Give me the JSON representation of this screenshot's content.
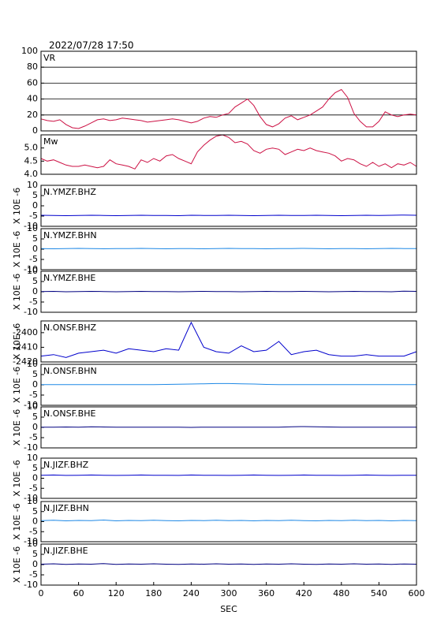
{
  "chart_data": [
    {
      "type": "line",
      "title": "2022/07/28 17:50",
      "label": "VR",
      "color": "#cc1144",
      "grid": true,
      "xlim": [
        0,
        600
      ],
      "ylim": [
        0,
        100
      ],
      "yticks": [
        0,
        20,
        40,
        60,
        80,
        100
      ],
      "x": [
        0,
        10,
        20,
        30,
        40,
        50,
        60,
        70,
        80,
        90,
        100,
        110,
        120,
        130,
        140,
        150,
        160,
        170,
        180,
        190,
        200,
        210,
        220,
        230,
        240,
        250,
        260,
        270,
        280,
        290,
        300,
        310,
        320,
        330,
        340,
        350,
        360,
        370,
        380,
        390,
        400,
        410,
        420,
        430,
        440,
        450,
        460,
        470,
        480,
        490,
        500,
        510,
        520,
        530,
        540,
        550,
        560,
        570,
        580,
        590,
        600
      ],
      "values": [
        15,
        13,
        12,
        14,
        8,
        4,
        3,
        6,
        10,
        14,
        15,
        13,
        14,
        16,
        15,
        14,
        13,
        11,
        12,
        13,
        14,
        15,
        14,
        12,
        10,
        12,
        16,
        18,
        17,
        20,
        22,
        30,
        35,
        40,
        32,
        18,
        8,
        5,
        9,
        16,
        19,
        14,
        17,
        20,
        25,
        30,
        40,
        48,
        52,
        42,
        22,
        12,
        5,
        5,
        12,
        24,
        20,
        18,
        20,
        21,
        20
      ]
    },
    {
      "type": "line",
      "label": "Mw",
      "color": "#cc1144",
      "grid": false,
      "xlim": [
        0,
        600
      ],
      "ylim": [
        4.0,
        5.5
      ],
      "yticks": [
        {
          "value": 4.0,
          "label": "4.0"
        },
        4.5,
        {
          "value": 5.0,
          "label": "5.0"
        }
      ],
      "x": [
        0,
        10,
        20,
        30,
        40,
        50,
        60,
        70,
        80,
        90,
        100,
        110,
        120,
        130,
        140,
        150,
        160,
        170,
        180,
        190,
        200,
        210,
        220,
        230,
        240,
        250,
        260,
        270,
        280,
        290,
        300,
        310,
        320,
        330,
        340,
        350,
        360,
        370,
        380,
        390,
        400,
        410,
        420,
        430,
        440,
        450,
        460,
        470,
        480,
        490,
        500,
        510,
        520,
        530,
        540,
        550,
        560,
        570,
        580,
        590,
        600
      ],
      "values": [
        4.6,
        4.5,
        4.55,
        4.45,
        4.35,
        4.3,
        4.3,
        4.35,
        4.3,
        4.25,
        4.3,
        4.55,
        4.4,
        4.35,
        4.3,
        4.2,
        4.55,
        4.45,
        4.6,
        4.5,
        4.7,
        4.75,
        4.6,
        4.5,
        4.4,
        4.85,
        5.1,
        5.3,
        5.45,
        5.5,
        5.4,
        5.2,
        5.25,
        5.15,
        4.9,
        4.8,
        4.95,
        5.0,
        4.95,
        4.75,
        4.85,
        4.95,
        4.9,
        5.0,
        4.9,
        4.85,
        4.8,
        4.7,
        4.5,
        4.6,
        4.55,
        4.4,
        4.3,
        4.45,
        4.3,
        4.4,
        4.25,
        4.4,
        4.35,
        4.45,
        4.3
      ]
    },
    {
      "type": "line",
      "label": "N.YMZF.BHZ",
      "ylabel": "X 10E -6",
      "color": "#0000cc",
      "xlim": [
        0,
        600
      ],
      "ylim": [
        -10,
        10
      ],
      "yticks": [
        10,
        5,
        0,
        -5,
        -10
      ],
      "x": [
        0,
        20,
        40,
        60,
        80,
        100,
        120,
        140,
        160,
        180,
        200,
        220,
        240,
        260,
        280,
        300,
        320,
        340,
        360,
        380,
        400,
        420,
        440,
        460,
        480,
        500,
        520,
        540,
        560,
        580,
        600
      ],
      "values": [
        -4.6,
        -4.7,
        -4.8,
        -4.7,
        -4.6,
        -4.7,
        -4.8,
        -4.7,
        -4.6,
        -4.7,
        -4.7,
        -4.8,
        -4.6,
        -4.7,
        -4.7,
        -4.6,
        -4.7,
        -4.8,
        -4.7,
        -4.6,
        -4.7,
        -4.7,
        -4.6,
        -4.7,
        -4.8,
        -4.7,
        -4.6,
        -4.7,
        -4.6,
        -4.5,
        -4.6
      ]
    },
    {
      "type": "line",
      "label": "N.YMZF.BHN",
      "ylabel": "X 10E -6",
      "color": "#1e88e5",
      "xlim": [
        0,
        600
      ],
      "ylim": [
        -10,
        10
      ],
      "yticks": [
        10,
        5,
        0,
        -5,
        -10
      ],
      "x": [
        0,
        20,
        40,
        60,
        80,
        100,
        120,
        140,
        160,
        180,
        200,
        220,
        240,
        260,
        280,
        300,
        320,
        340,
        360,
        380,
        400,
        420,
        440,
        460,
        480,
        500,
        520,
        540,
        560,
        580,
        600
      ],
      "values": [
        0.3,
        0.2,
        0.3,
        0.4,
        0.3,
        0.2,
        0.3,
        0.3,
        0.4,
        0.3,
        0.2,
        0.3,
        0.3,
        0.2,
        0.3,
        0.4,
        0.3,
        0.3,
        0.2,
        0.3,
        0.3,
        0.4,
        0.3,
        0.2,
        0.3,
        0.3,
        0.2,
        0.3,
        0.4,
        0.3,
        0.3
      ]
    },
    {
      "type": "line",
      "label": "N.YMZF.BHE",
      "ylabel": "X 10E -6",
      "color": "#000080",
      "xlim": [
        0,
        600
      ],
      "ylim": [
        -10,
        10
      ],
      "yticks": [
        10,
        5,
        0,
        -5,
        -10
      ],
      "x": [
        0,
        20,
        40,
        60,
        80,
        100,
        120,
        140,
        160,
        180,
        200,
        220,
        240,
        260,
        280,
        300,
        320,
        340,
        360,
        380,
        400,
        420,
        440,
        460,
        480,
        500,
        520,
        540,
        560,
        580,
        600
      ],
      "values": [
        0.1,
        0.2,
        0.0,
        0.1,
        0.2,
        0.1,
        0.0,
        0.1,
        0.2,
        0.1,
        0.1,
        0.0,
        0.1,
        0.2,
        0.1,
        0.1,
        0.0,
        0.1,
        0.2,
        0.1,
        0.1,
        0.2,
        0.1,
        0.0,
        0.1,
        0.2,
        0.1,
        0.1,
        0.0,
        0.3,
        0.2
      ]
    },
    {
      "type": "line",
      "label": "N.ONSF.BHZ",
      "ylabel": "X 10E -6",
      "color": "#0000cc",
      "xlim": [
        0,
        600
      ],
      "ylim": [
        -2420,
        -2392
      ],
      "yticks": [
        -2400,
        -2410,
        -2420
      ],
      "x": [
        0,
        20,
        40,
        60,
        80,
        100,
        120,
        140,
        160,
        180,
        200,
        220,
        240,
        260,
        280,
        300,
        320,
        340,
        360,
        380,
        400,
        420,
        440,
        460,
        480,
        500,
        520,
        540,
        560,
        580,
        600
      ],
      "values": [
        -2416,
        -2415,
        -2417,
        -2414,
        -2413,
        -2412,
        -2414,
        -2411,
        -2412,
        -2413,
        -2411,
        -2412,
        -2393,
        -2410,
        -2413,
        -2414,
        -2409,
        -2413,
        -2412,
        -2406,
        -2415,
        -2413,
        -2412,
        -2415,
        -2416,
        -2416,
        -2415,
        -2416,
        -2416,
        -2416,
        -2413
      ]
    },
    {
      "type": "line",
      "label": "N.ONSF.BHN",
      "ylabel": "X 10E -6",
      "color": "#1e88e5",
      "xlim": [
        0,
        600
      ],
      "ylim": [
        -10,
        10
      ],
      "yticks": [
        10,
        5,
        0,
        -5,
        -10
      ],
      "x": [
        0,
        20,
        40,
        60,
        80,
        100,
        120,
        140,
        160,
        180,
        200,
        220,
        240,
        260,
        280,
        300,
        320,
        340,
        360,
        380,
        400,
        420,
        440,
        460,
        480,
        500,
        520,
        540,
        560,
        580,
        600
      ],
      "values": [
        0.1,
        0.1,
        0.1,
        0.1,
        0.1,
        0.1,
        0.1,
        0.1,
        0.1,
        0.1,
        0.2,
        0.3,
        0.4,
        0.5,
        0.6,
        0.6,
        0.5,
        0.4,
        0.2,
        0.1,
        0.1,
        0.1,
        0.1,
        0.1,
        0.1,
        0.1,
        0.1,
        0.1,
        0.1,
        0.1,
        0.1
      ]
    },
    {
      "type": "line",
      "label": "N.ONSF.BHE",
      "ylabel": "X 10E -6",
      "color": "#000080",
      "xlim": [
        0,
        600
      ],
      "ylim": [
        -10,
        10
      ],
      "yticks": [
        10,
        5,
        0,
        -5,
        -10
      ],
      "x": [
        0,
        20,
        40,
        60,
        80,
        100,
        120,
        140,
        160,
        180,
        200,
        220,
        240,
        260,
        280,
        300,
        320,
        340,
        360,
        380,
        400,
        420,
        440,
        460,
        480,
        500,
        520,
        540,
        560,
        580,
        600
      ],
      "values": [
        0.1,
        0.1,
        0.2,
        0.1,
        0.3,
        0.2,
        0.1,
        0.1,
        0.1,
        0.1,
        0.1,
        0.1,
        0.0,
        0.1,
        0.1,
        0.1,
        0.1,
        0.1,
        0.1,
        0.1,
        0.3,
        0.4,
        0.3,
        0.2,
        0.1,
        0.1,
        0.1,
        0.1,
        0.1,
        0.1,
        0.1
      ]
    },
    {
      "type": "line",
      "label": "N.JIZF.BHZ",
      "ylabel": "X 10E -6",
      "color": "#0000cc",
      "xlim": [
        0,
        600
      ],
      "ylim": [
        -10,
        10
      ],
      "yticks": [
        10,
        5,
        0,
        -5,
        -10
      ],
      "x": [
        0,
        20,
        40,
        60,
        80,
        100,
        120,
        140,
        160,
        180,
        200,
        220,
        240,
        260,
        280,
        300,
        320,
        340,
        360,
        380,
        400,
        420,
        440,
        460,
        480,
        500,
        520,
        540,
        560,
        580,
        600
      ],
      "values": [
        1.5,
        1.6,
        1.4,
        1.5,
        1.6,
        1.5,
        1.4,
        1.5,
        1.6,
        1.5,
        1.5,
        1.4,
        1.6,
        1.5,
        1.5,
        1.4,
        1.5,
        1.6,
        1.5,
        1.4,
        1.5,
        1.6,
        1.5,
        1.5,
        1.4,
        1.5,
        1.6,
        1.5,
        1.4,
        1.5,
        1.5
      ]
    },
    {
      "type": "line",
      "label": "N.JIZF.BHN",
      "ylabel": "X 10E -6",
      "color": "#1e88e5",
      "xlim": [
        0,
        600
      ],
      "ylim": [
        -10,
        10
      ],
      "yticks": [
        10,
        5,
        0,
        -5,
        -10
      ],
      "x": [
        0,
        20,
        40,
        60,
        80,
        100,
        120,
        140,
        160,
        180,
        200,
        220,
        240,
        260,
        280,
        300,
        320,
        340,
        360,
        380,
        400,
        420,
        440,
        460,
        480,
        500,
        520,
        540,
        560,
        580,
        600
      ],
      "values": [
        0.5,
        0.7,
        0.4,
        0.6,
        0.5,
        0.8,
        0.4,
        0.6,
        0.5,
        0.7,
        0.5,
        0.4,
        0.6,
        0.5,
        0.7,
        0.5,
        0.6,
        0.4,
        0.6,
        0.5,
        0.7,
        0.5,
        0.4,
        0.6,
        0.5,
        0.7,
        0.5,
        0.6,
        0.4,
        0.6,
        0.5
      ]
    },
    {
      "type": "line",
      "label": "N.JIZF.BHE",
      "ylabel": "X 10E -6",
      "color": "#000080",
      "xlim": [
        0,
        600
      ],
      "ylim": [
        -10,
        10
      ],
      "yticks": [
        10,
        5,
        0,
        -5,
        -10
      ],
      "xticks": [
        0,
        60,
        120,
        180,
        240,
        300,
        360,
        420,
        480,
        540,
        600
      ],
      "xlabel": "SEC",
      "x": [
        0,
        20,
        40,
        60,
        80,
        100,
        120,
        140,
        160,
        180,
        200,
        220,
        240,
        260,
        280,
        300,
        320,
        340,
        360,
        380,
        400,
        420,
        440,
        460,
        480,
        500,
        520,
        540,
        560,
        580,
        600
      ],
      "values": [
        0.2,
        0.4,
        0.1,
        0.3,
        0.2,
        0.5,
        0.1,
        0.3,
        0.2,
        0.4,
        0.2,
        0.1,
        0.3,
        0.2,
        0.4,
        0.2,
        0.3,
        0.1,
        0.3,
        0.2,
        0.4,
        0.2,
        0.1,
        0.3,
        0.2,
        0.4,
        0.2,
        0.3,
        0.1,
        0.3,
        0.2
      ]
    }
  ]
}
